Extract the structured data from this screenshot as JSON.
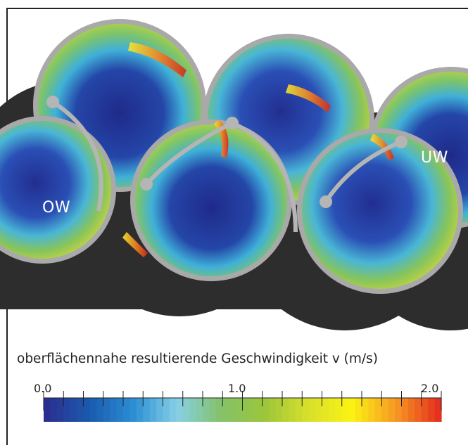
{
  "labels": {
    "ow": "OW",
    "uw": "UW"
  },
  "colorbar": {
    "title": "oberflächennahe resultierende Geschwindigkeit v (m/s)",
    "ticks": [
      "0.0",
      "1.0",
      "2.0"
    ],
    "min": 0.0,
    "max": 2.0,
    "colors": [
      "#2b2f8f",
      "#1a5bb0",
      "#2c8fd4",
      "#87d0e6",
      "#84c26a",
      "#9bc63a",
      "#d7df2c",
      "#fbf313",
      "#f79b23",
      "#e4321f"
    ]
  }
}
